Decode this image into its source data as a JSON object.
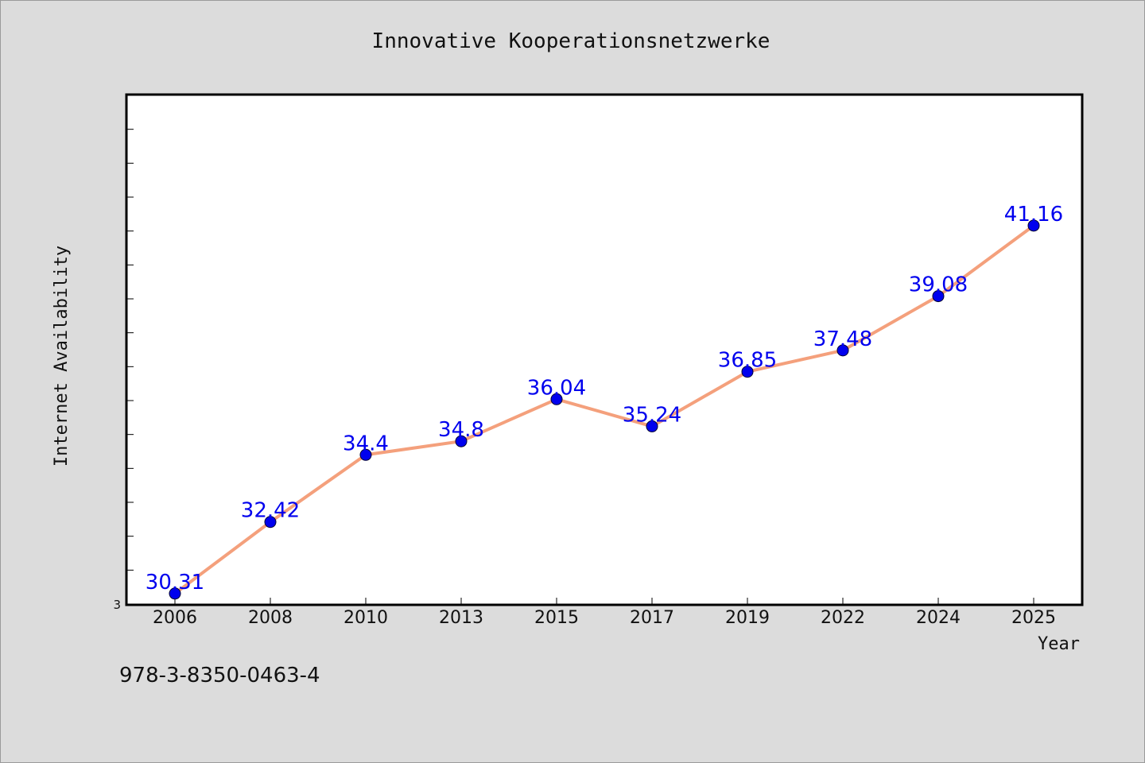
{
  "chart_data": {
    "type": "line",
    "title": "Innovative Kooperationsnetzwerke",
    "xlabel": "Year",
    "ylabel": "Internet Availability",
    "categories": [
      "2006",
      "2008",
      "2010",
      "2013",
      "2015",
      "2017",
      "2019",
      "2022",
      "2024",
      "2025"
    ],
    "series": [
      {
        "values": [
          30.31,
          32.42,
          34.4,
          34.8,
          36.04,
          35.24,
          36.85,
          37.48,
          39.08,
          41.16
        ]
      }
    ],
    "data_labels": [
      "30.31",
      "32.42",
      "34.4",
      "34.8",
      "36.04",
      "35.24",
      "36.85",
      "37.48",
      "39.08",
      "41.16"
    ],
    "ylim": [
      30,
      45
    ],
    "y_tick_labels": [
      "3"
    ],
    "grid": false,
    "colors": {
      "line": "#f4a07c",
      "marker": "#0000ee",
      "label": "#0000ee",
      "background": "#dcdcdc",
      "plot_background": "#ffffff"
    }
  },
  "footer": {
    "isbn": "978-3-8350-0463-4"
  }
}
